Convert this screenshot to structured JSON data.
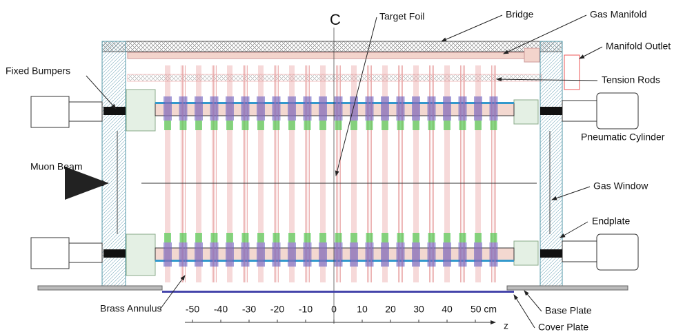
{
  "callouts": [
    {
      "text": "Target Foil"
    },
    {
      "text": "Bridge"
    },
    {
      "text": "Gas Manifold"
    },
    {
      "text": "Manifold Outlet"
    },
    {
      "text": "Tension Rods"
    },
    {
      "text": "Fixed Bumpers"
    },
    {
      "text": "Pneumatic Cylinder"
    },
    {
      "text": "Muon Beam"
    },
    {
      "text": "Gas Window"
    },
    {
      "text": "Endplate"
    },
    {
      "text": "Brass Annulus"
    },
    {
      "text": "Base Plate"
    },
    {
      "text": "Cover Plate"
    }
  ],
  "centerline": "C",
  "scale": {
    "ticks": [
      "-50",
      "-40",
      "-30",
      "-20",
      "-10",
      "0",
      "10",
      "20",
      "30",
      "40",
      "50 cm"
    ],
    "axis": "z"
  }
}
